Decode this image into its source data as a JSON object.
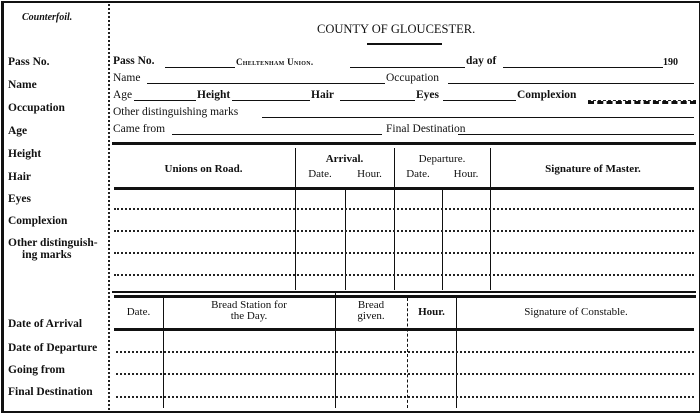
{
  "counterfoil": {
    "heading": "Counterfoil.",
    "labels": [
      "Pass No.",
      "Name",
      "Occupation",
      "Age",
      "Height",
      "Hair",
      "Eyes",
      "Complexion",
      "Other distinguish-",
      "ing marks"
    ],
    "lower_labels": [
      "Date of Arrival",
      "Date of Departure",
      "Going from",
      "Final Destination"
    ]
  },
  "form": {
    "title": "COUNTY OF GLOUCESTER.",
    "pass_no": "Pass No.",
    "union": "Cheltenham Union.",
    "day_of": "day of",
    "year_prefix": "190",
    "name": "Name",
    "occupation": "Occupation",
    "age": "Age",
    "height": "Height",
    "hair": "Hair",
    "eyes": "Eyes",
    "complexion": "Complexion",
    "other_marks": "Other distinguishing marks",
    "came_from": "Came from",
    "final_destination": "Final Destination"
  },
  "table1": {
    "headers": {
      "unions": "Unions on Road.",
      "arrival": "Arrival.",
      "departure": "Departure.",
      "date": "Date.",
      "hour": "Hour.",
      "signature": "Signature of Master."
    }
  },
  "table2": {
    "headers": {
      "date": "Date.",
      "bread_station_1": "Bread Station for",
      "bread_station_2": "the Day.",
      "bread_given_1": "Bread",
      "bread_given_2": "given.",
      "hour": "Hour.",
      "signature": "Signature of Constable."
    }
  }
}
